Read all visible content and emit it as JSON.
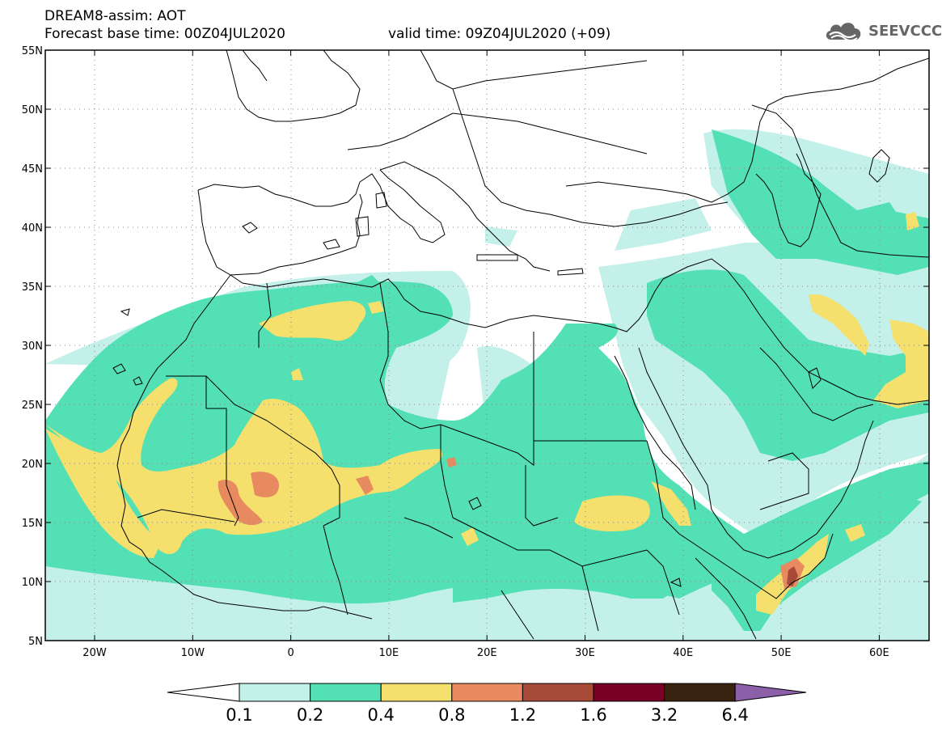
{
  "header": {
    "title": "DREAM8-assim: AOT",
    "base_time": "Forecast base time: 00Z04JUL2020",
    "valid_time": "valid time: 09Z04JUL2020 (+09)"
  },
  "logo": {
    "text": "SEEVCCC",
    "icon": "cloud-icon",
    "color": "#666666"
  },
  "map": {
    "lat_labels": [
      "55N",
      "50N",
      "45N",
      "40N",
      "35N",
      "30N",
      "25N",
      "20N",
      "15N",
      "10N",
      "5N"
    ],
    "lon_labels": [
      "20W",
      "10W",
      "0",
      "10E",
      "20E",
      "30E",
      "40E",
      "50E",
      "60E"
    ]
  },
  "colorbar": {
    "labels": [
      "0.1",
      "0.2",
      "0.4",
      "0.8",
      "1.2",
      "1.6",
      "3.2",
      "6.4"
    ],
    "colors": [
      "#ffffff",
      "#c4f0ea",
      "#52e0b4",
      "#f5e06e",
      "#e88a60",
      "#a84a38",
      "#7a0028",
      "#3a2210",
      "#8c60a8"
    ]
  },
  "palette": {
    "c1": "#c4f0ea",
    "c2": "#52e0b4",
    "c3": "#f5e06e",
    "c4": "#e88a60",
    "c5": "#a84a38"
  }
}
